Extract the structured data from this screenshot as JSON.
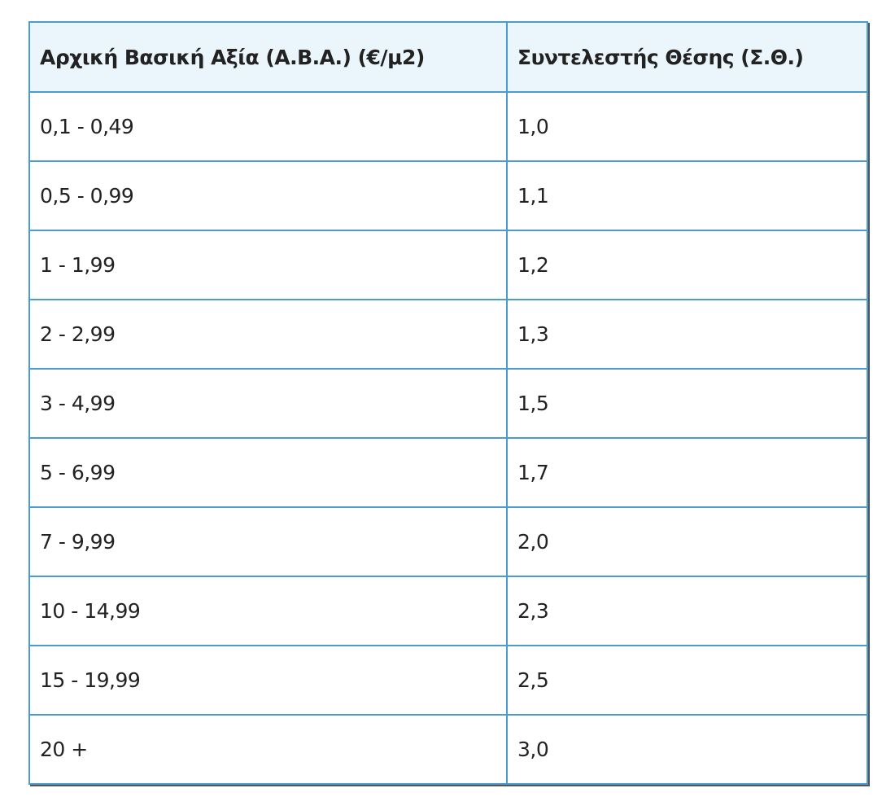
{
  "table": {
    "header": [
      "Αρχική Βασική Αξία (Α.Β.Α.) (€/μ2)",
      "Συντελεστής Θέσης (Σ.Θ.)"
    ],
    "rows": [
      [
        "0,1 - 0,49",
        "1,0"
      ],
      [
        "0,5 - 0,99",
        "1,1"
      ],
      [
        "1 - 1,99",
        "1,2"
      ],
      [
        "2 - 2,99",
        "1,3"
      ],
      [
        "3 - 4,99",
        "1,5"
      ],
      [
        "5 - 6,99",
        "1,7"
      ],
      [
        "7 - 9,99",
        "2,0"
      ],
      [
        "10 - 14,99",
        "2,3"
      ],
      [
        "15 - 19,99",
        "2,5"
      ],
      [
        "20 +",
        "3,0"
      ]
    ]
  }
}
